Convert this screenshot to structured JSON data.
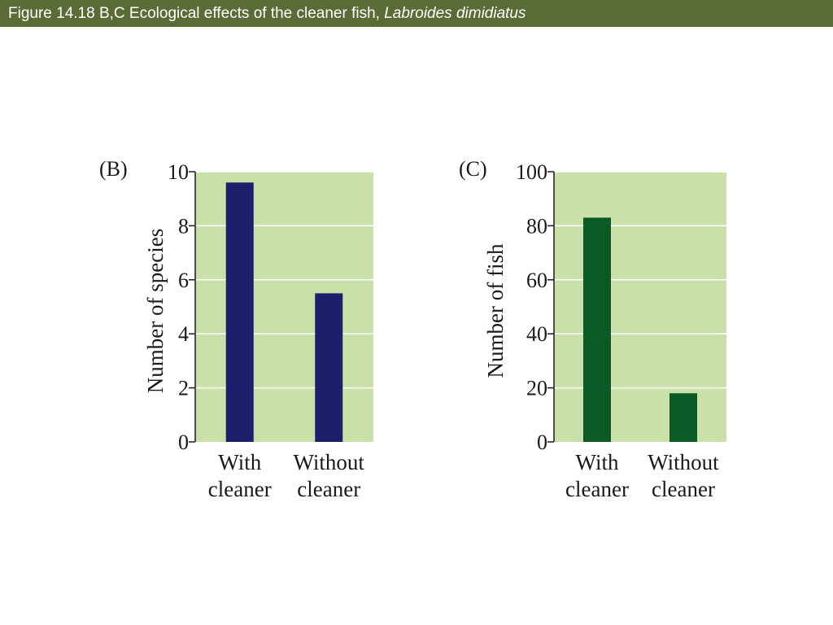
{
  "slide": {
    "title_prefix": "Figure 14.18 B,C  Ecological effects of the cleaner fish, ",
    "title_species": "Labroides dimidiatus",
    "title_bar_color": "#5a6b36",
    "plot_bg_color": "#c9e0a8"
  },
  "chart_data": [
    {
      "type": "bar",
      "panel_label": "(B)",
      "categories": [
        [
          "With",
          "cleaner"
        ],
        [
          "Without",
          "cleaner"
        ]
      ],
      "values": [
        9.6,
        5.5
      ],
      "ylabel": "Number of species",
      "xlabel": "",
      "ylim": [
        0,
        10
      ],
      "yticks": [
        0,
        2,
        4,
        6,
        8,
        10
      ],
      "grid": true,
      "bar_color": "#1e1f6b"
    },
    {
      "type": "bar",
      "panel_label": "(C)",
      "categories": [
        [
          "With",
          "cleaner"
        ],
        [
          "Without",
          "cleaner"
        ]
      ],
      "values": [
        83,
        18
      ],
      "ylabel": "Number of fish",
      "xlabel": "",
      "ylim": [
        0,
        100
      ],
      "yticks": [
        0,
        20,
        40,
        60,
        80,
        100
      ],
      "grid": true,
      "bar_color": "#0b5a26"
    }
  ]
}
